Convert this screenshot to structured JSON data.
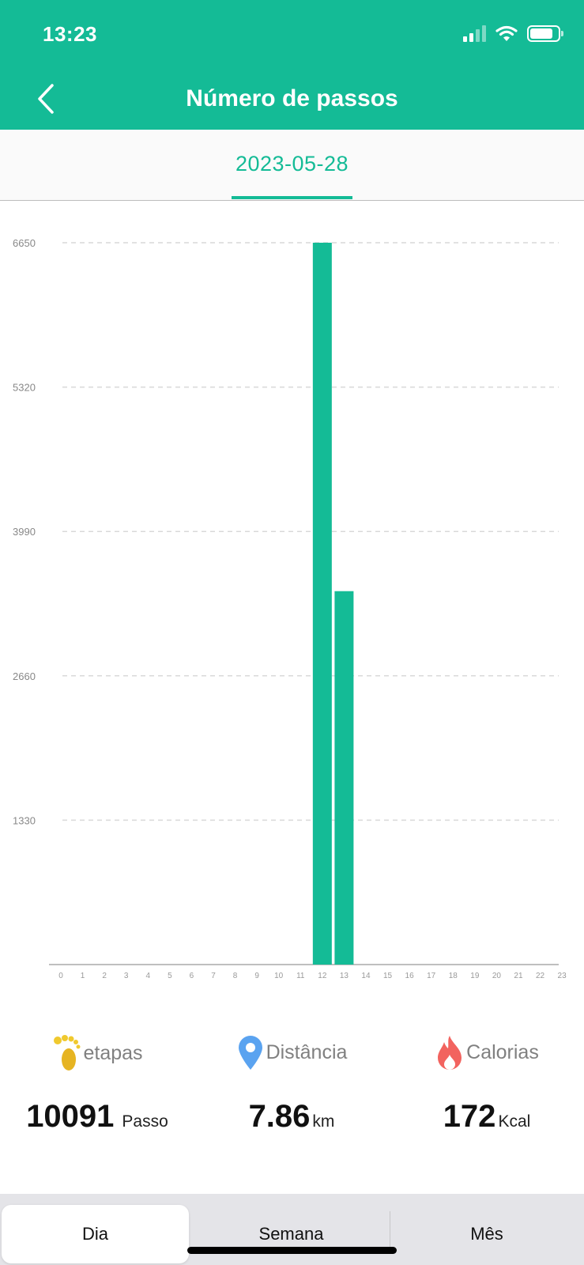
{
  "status_bar": {
    "time": "13:23"
  },
  "header": {
    "title": "Número de passos",
    "back_icon": "chevron-left-icon",
    "background": "#14bb96"
  },
  "date_tab": {
    "label": "2023-05-28"
  },
  "chart_data": {
    "type": "bar",
    "categories": [
      "0",
      "1",
      "2",
      "3",
      "4",
      "5",
      "6",
      "7",
      "8",
      "9",
      "10",
      "11",
      "12",
      "13",
      "14",
      "15",
      "16",
      "17",
      "18",
      "19",
      "20",
      "21",
      "22",
      "23"
    ],
    "values": [
      0,
      0,
      0,
      0,
      0,
      0,
      0,
      0,
      0,
      0,
      0,
      0,
      6650,
      3440,
      0,
      0,
      0,
      0,
      0,
      0,
      0,
      0,
      0,
      0
    ],
    "y_ticks": [
      "6650",
      "5320",
      "3990",
      "2660",
      "1330"
    ],
    "ylim": [
      0,
      6650
    ],
    "grid": true,
    "bar_color": "#14bb96"
  },
  "stats": [
    {
      "icon": "footprint-icon",
      "label": "etapas",
      "value": "10091",
      "unit": "Passo"
    },
    {
      "icon": "location-pin-icon",
      "label": "Distância",
      "value": "7.86",
      "unit": "km"
    },
    {
      "icon": "fire-icon",
      "label": "Calorias",
      "value": "172",
      "unit": "Kcal"
    }
  ],
  "bottom_tabs": [
    {
      "label": "Dia",
      "active": true
    },
    {
      "label": "Semana",
      "active": false
    },
    {
      "label": "Mês",
      "active": false
    }
  ]
}
